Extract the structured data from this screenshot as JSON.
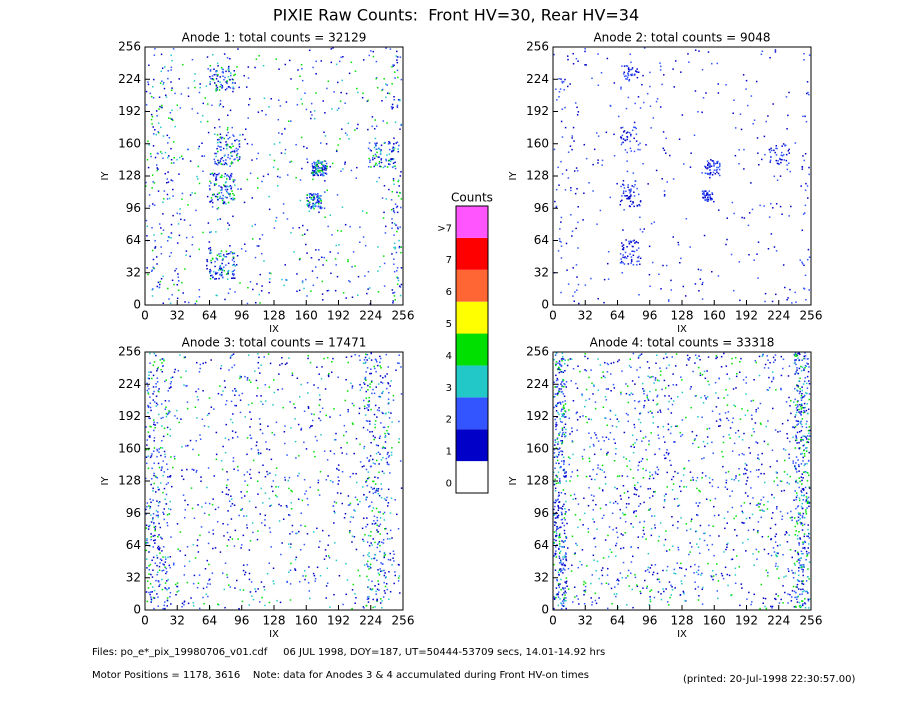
{
  "title": "PIXIE Raw Counts:  Front HV=30, Rear HV=34",
  "chart_data": [
    {
      "type": "image",
      "title": "Anode 1: total counts = 32129",
      "xlabel": "IX",
      "ylabel": "IY",
      "xlim": [
        0,
        256
      ],
      "ylim": [
        0,
        256
      ],
      "xticks": [
        0,
        32,
        64,
        96,
        128,
        160,
        192,
        224,
        256
      ],
      "yticks": [
        0,
        32,
        64,
        96,
        128,
        160,
        192,
        224,
        256
      ]
    },
    {
      "type": "image",
      "title": "Anode 2: total counts = 9048",
      "xlabel": "IX",
      "ylabel": "IY",
      "xlim": [
        0,
        256
      ],
      "ylim": [
        0,
        256
      ],
      "xticks": [
        0,
        32,
        64,
        96,
        128,
        160,
        192,
        224,
        256
      ],
      "yticks": [
        0,
        32,
        64,
        96,
        128,
        160,
        192,
        224,
        256
      ]
    },
    {
      "type": "image",
      "title": "Anode 3: total counts = 17471",
      "xlabel": "IX",
      "ylabel": "IY",
      "xlim": [
        0,
        256
      ],
      "ylim": [
        0,
        256
      ],
      "xticks": [
        0,
        32,
        64,
        96,
        128,
        160,
        192,
        224,
        256
      ],
      "yticks": [
        0,
        32,
        64,
        96,
        128,
        160,
        192,
        224,
        256
      ]
    },
    {
      "type": "image",
      "title": "Anode 4: total counts = 33318",
      "xlabel": "IX",
      "ylabel": "IY",
      "xlim": [
        0,
        256
      ],
      "ylim": [
        0,
        256
      ],
      "xticks": [
        0,
        32,
        64,
        96,
        128,
        160,
        192,
        224,
        256
      ],
      "yticks": [
        0,
        32,
        64,
        96,
        128,
        160,
        192,
        224,
        256
      ]
    }
  ],
  "colorbar": {
    "title": "Counts",
    "labels": [
      "0",
      "1",
      "2",
      "3",
      "4",
      "5",
      "6",
      "7",
      ">7"
    ],
    "colors": [
      "#ffffff",
      "#0000c8",
      "#3355ff",
      "#22c8c8",
      "#00e000",
      "#ffff00",
      "#ff6633",
      "#ff0000",
      "#ff55ff"
    ]
  },
  "footer": {
    "files": "Files: po_e*_pix_19980706_v01.cdf     06 JUL 1998, DOY=187, UT=50444-53709 secs, 14.01-14.92 hrs",
    "motor": "Motor Positions = 1178, 3616    Note: data for Anodes 3 & 4 accumulated during Front HV-on times",
    "printed": "(printed: 20-Jul-1998 22:30:57.00)"
  }
}
